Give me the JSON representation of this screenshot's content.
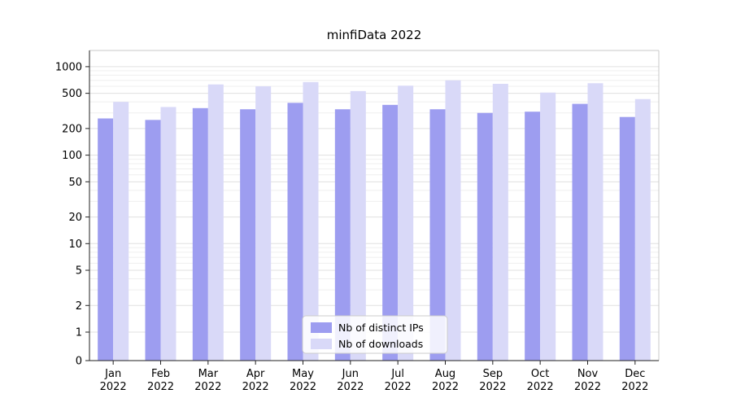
{
  "chart_data": {
    "type": "bar",
    "title": "minfiData 2022",
    "yscale": "symlog",
    "grid": true,
    "legend_position": "lower center",
    "yticks": [
      0,
      1,
      2,
      5,
      10,
      20,
      50,
      100,
      200,
      500,
      1000
    ],
    "ylim": [
      0,
      1500
    ],
    "categories": [
      "Jan",
      "Feb",
      "Mar",
      "Apr",
      "May",
      "Jun",
      "Jul",
      "Aug",
      "Sep",
      "Oct",
      "Nov",
      "Dec"
    ],
    "year": "2022",
    "series": [
      {
        "name": "Nb of distinct IPs",
        "color": "#9d9df0",
        "values": [
          260,
          250,
          340,
          330,
          390,
          330,
          370,
          330,
          300,
          310,
          380,
          270
        ]
      },
      {
        "name": "Nb of downloads",
        "color": "#d9d9f8",
        "values": [
          400,
          350,
          630,
          600,
          670,
          530,
          610,
          700,
          640,
          510,
          650,
          430
        ]
      }
    ]
  }
}
